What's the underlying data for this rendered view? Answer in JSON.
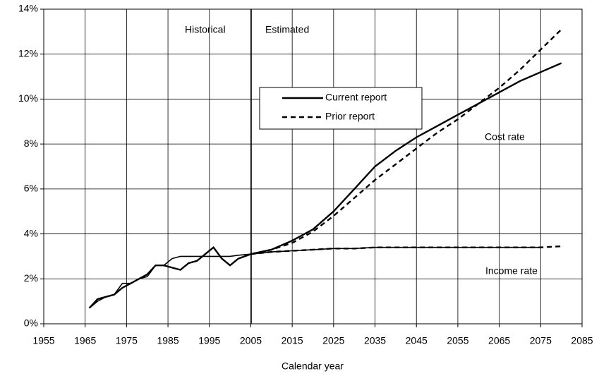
{
  "chart_data": {
    "type": "line",
    "x_label": "Calendar year",
    "annotations": [
      "Historical",
      "Estimated",
      "Cost rate",
      "Income rate"
    ],
    "x": [
      1966,
      1968,
      1970,
      1972,
      1974,
      1976,
      1978,
      1980,
      1982,
      1984,
      1986,
      1988,
      1990,
      1992,
      1994,
      1996,
      1998,
      2000,
      2002,
      2005,
      2010,
      2015,
      2020,
      2025,
      2030,
      2035,
      2040,
      2045,
      2050,
      2055,
      2060,
      2065,
      2070,
      2075,
      2080
    ],
    "series": [
      {
        "name": "Current report",
        "color": "#000000",
        "dashed": false,
        "cost": [
          0.7,
          1.1,
          1.2,
          1.3,
          1.6,
          1.8,
          2.0,
          2.2,
          2.6,
          2.6,
          2.5,
          2.4,
          2.7,
          2.8,
          3.1,
          3.4,
          2.9,
          2.6,
          2.9,
          3.1,
          3.3,
          3.7,
          4.2,
          5.0,
          6.0,
          7.0,
          7.7,
          8.3,
          8.8,
          9.3,
          9.8,
          10.3,
          10.8,
          11.2,
          11.6
        ],
        "income": [
          0.7,
          1.0,
          1.2,
          1.3,
          1.8,
          1.8,
          2.0,
          2.1,
          2.6,
          2.6,
          2.9,
          3.0,
          3.0,
          3.0,
          3.0,
          3.0,
          3.0,
          3.0,
          3.05,
          3.1,
          3.2,
          3.25,
          3.3,
          3.35,
          3.35,
          3.4,
          3.4,
          3.4,
          3.4,
          3.4,
          3.4,
          3.4,
          3.4,
          3.4,
          null
        ]
      },
      {
        "name": "Prior report",
        "color": "#000000",
        "dashed": true,
        "cost": [
          null,
          null,
          null,
          null,
          null,
          null,
          null,
          null,
          null,
          null,
          null,
          null,
          null,
          null,
          null,
          null,
          null,
          null,
          null,
          3.1,
          3.3,
          3.6,
          4.1,
          4.8,
          5.6,
          6.4,
          7.1,
          7.8,
          8.5,
          9.1,
          9.8,
          10.5,
          11.3,
          12.2,
          13.1
        ],
        "income": [
          null,
          null,
          null,
          null,
          null,
          null,
          null,
          null,
          null,
          null,
          null,
          null,
          null,
          null,
          null,
          null,
          null,
          null,
          null,
          3.1,
          3.2,
          3.25,
          3.3,
          3.35,
          3.35,
          3.4,
          3.4,
          3.4,
          3.4,
          3.4,
          3.4,
          3.4,
          3.4,
          3.4,
          3.45
        ]
      }
    ],
    "xlim": [
      1955,
      2085
    ],
    "xticks": [
      1955,
      1965,
      1975,
      1985,
      1995,
      2005,
      2015,
      2025,
      2035,
      2045,
      2055,
      2065,
      2075,
      2085
    ],
    "ylim": [
      0,
      14
    ],
    "yticks": [
      {
        "value": 0,
        "label": "0%"
      },
      {
        "value": 2,
        "label": "2%"
      },
      {
        "value": 4,
        "label": "4%"
      },
      {
        "value": 6,
        "label": "6%"
      },
      {
        "value": 8,
        "label": "8%"
      },
      {
        "value": 10,
        "label": "10%"
      },
      {
        "value": 12,
        "label": "12%"
      },
      {
        "value": 14,
        "label": "14%"
      }
    ],
    "grid": true
  }
}
